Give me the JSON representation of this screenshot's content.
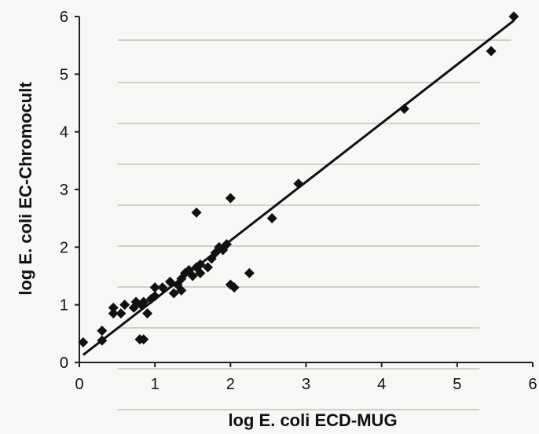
{
  "chart_data": {
    "type": "scatter",
    "xlabel": "log E. coli ECD-MUG",
    "ylabel": "log E. coli EC-Chromocult",
    "xlim": [
      0,
      6
    ],
    "ylim": [
      0,
      6
    ],
    "x_ticks": [
      "0",
      "1",
      "2",
      "3",
      "4",
      "5",
      "6"
    ],
    "y_ticks": [
      "0",
      "1",
      "2",
      "3",
      "4",
      "5",
      "6"
    ],
    "grid": false,
    "legend": "none",
    "marker": "diamond",
    "marker_color": "#111111",
    "line_color": "#111111",
    "trendline": {
      "x": [
        0.05,
        5.75
      ],
      "y": [
        0.13,
        5.93
      ]
    },
    "series": [
      {
        "x": [
          0.05,
          0.3,
          0.3,
          0.45,
          0.45,
          0.55,
          0.6,
          0.72,
          0.75,
          0.8,
          0.82,
          0.85,
          0.85,
          0.9,
          0.95,
          1.0,
          1.0,
          1.1,
          1.2,
          1.25,
          1.3,
          1.35,
          1.35,
          1.4,
          1.45,
          1.5,
          1.55,
          1.6,
          1.6,
          1.7,
          1.75,
          1.8,
          1.85,
          1.9,
          1.95,
          2.0,
          2.05,
          1.55,
          2.0,
          2.25,
          2.55,
          2.9,
          4.3,
          5.45,
          5.75
        ],
        "y": [
          0.35,
          0.38,
          0.55,
          0.85,
          0.95,
          0.85,
          1.0,
          0.95,
          1.05,
          0.4,
          1.0,
          0.4,
          1.05,
          0.85,
          1.1,
          1.3,
          1.15,
          1.3,
          1.4,
          1.2,
          1.35,
          1.45,
          1.25,
          1.55,
          1.6,
          1.5,
          1.65,
          1.7,
          1.55,
          1.65,
          1.8,
          1.9,
          2.0,
          1.95,
          2.05,
          2.85,
          1.3,
          2.6,
          1.35,
          1.55,
          2.5,
          3.1,
          4.4,
          5.4,
          6.0
        ]
      }
    ]
  }
}
